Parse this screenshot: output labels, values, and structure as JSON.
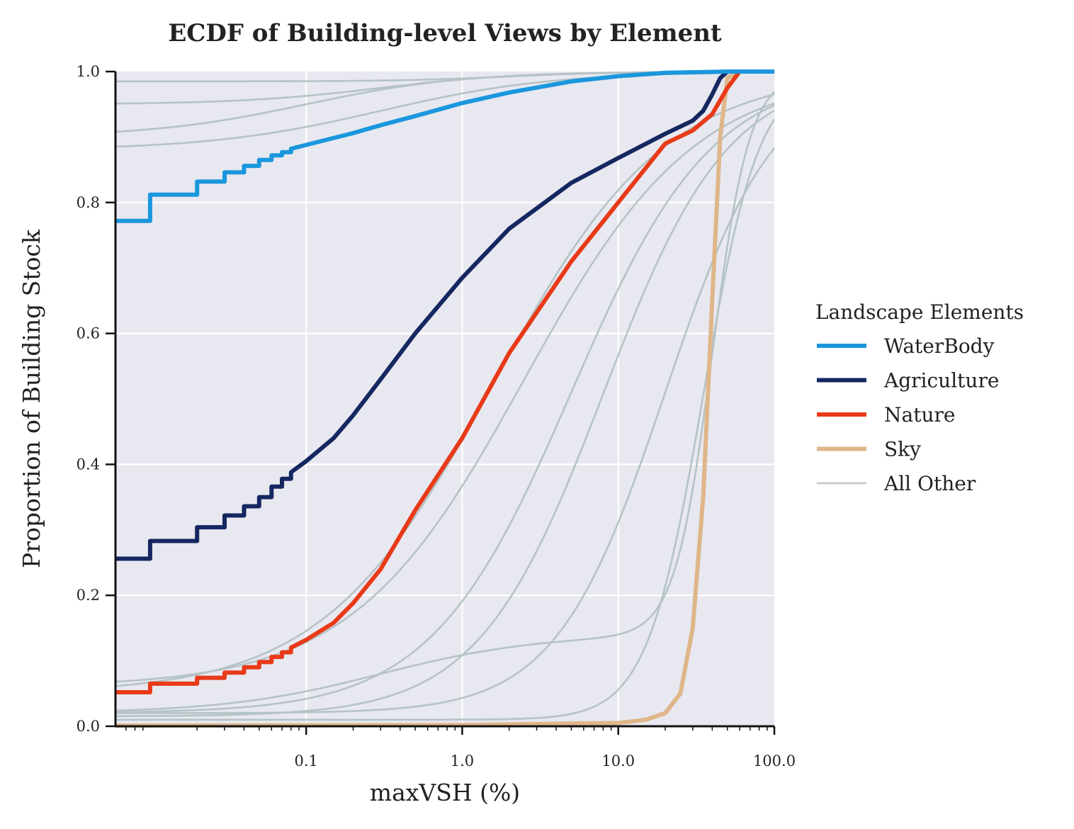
{
  "chart_data": {
    "type": "line",
    "title": "ECDF of Building-level Views by Element",
    "xlabel": "maxVSH (%)",
    "ylabel": "Proportion of Building Stock",
    "xscale": "log",
    "xlim": [
      0.006,
      100
    ],
    "ylim": [
      0,
      1
    ],
    "x_ticks": [
      0.1,
      1.0,
      10.0,
      100.0
    ],
    "x_tick_labels": [
      "0.1",
      "1.0",
      "10.0",
      "100.0"
    ],
    "y_ticks": [
      0,
      0.2,
      0.4,
      0.6,
      0.8,
      1.0
    ],
    "y_tick_labels": [
      "0.0",
      "0.2",
      "0.4",
      "0.6",
      "0.8",
      "1.0"
    ],
    "grid": true,
    "legend": {
      "title": "Landscape Elements",
      "placement": "right-outside",
      "entries": [
        {
          "label": "WaterBody",
          "color": "#1a97dd"
        },
        {
          "label": "Agriculture",
          "color": "#152760"
        },
        {
          "label": "Nature",
          "color": "#e83a18"
        },
        {
          "label": "Sky",
          "color": "#dfb68a"
        },
        {
          "label": "All Other",
          "color": "#cccccc"
        }
      ]
    },
    "series": [
      {
        "name": "WaterBody",
        "color": "#1a97dd",
        "points": [
          [
            0.006,
            0.772
          ],
          [
            0.01,
            0.772
          ],
          [
            0.01,
            0.812
          ],
          [
            0.02,
            0.812
          ],
          [
            0.02,
            0.832
          ],
          [
            0.03,
            0.832
          ],
          [
            0.03,
            0.846
          ],
          [
            0.04,
            0.846
          ],
          [
            0.04,
            0.856
          ],
          [
            0.05,
            0.856
          ],
          [
            0.05,
            0.865
          ],
          [
            0.06,
            0.865
          ],
          [
            0.06,
            0.872
          ],
          [
            0.07,
            0.872
          ],
          [
            0.07,
            0.877
          ],
          [
            0.08,
            0.877
          ],
          [
            0.08,
            0.882
          ],
          [
            0.1,
            0.888
          ],
          [
            0.2,
            0.906
          ],
          [
            0.3,
            0.918
          ],
          [
            0.5,
            0.932
          ],
          [
            1.0,
            0.952
          ],
          [
            2.0,
            0.968
          ],
          [
            5.0,
            0.985
          ],
          [
            10.0,
            0.993
          ],
          [
            20.0,
            0.998
          ],
          [
            50.0,
            1.0
          ],
          [
            100.0,
            1.0
          ]
        ]
      },
      {
        "name": "Agriculture",
        "color": "#152760",
        "points": [
          [
            0.006,
            0.256
          ],
          [
            0.01,
            0.256
          ],
          [
            0.01,
            0.283
          ],
          [
            0.02,
            0.283
          ],
          [
            0.02,
            0.304
          ],
          [
            0.03,
            0.304
          ],
          [
            0.03,
            0.322
          ],
          [
            0.04,
            0.322
          ],
          [
            0.04,
            0.336
          ],
          [
            0.05,
            0.336
          ],
          [
            0.05,
            0.35
          ],
          [
            0.06,
            0.35
          ],
          [
            0.06,
            0.366
          ],
          [
            0.07,
            0.366
          ],
          [
            0.07,
            0.378
          ],
          [
            0.08,
            0.378
          ],
          [
            0.08,
            0.388
          ],
          [
            0.1,
            0.405
          ],
          [
            0.15,
            0.44
          ],
          [
            0.2,
            0.475
          ],
          [
            0.3,
            0.53
          ],
          [
            0.5,
            0.6
          ],
          [
            1.0,
            0.685
          ],
          [
            2.0,
            0.76
          ],
          [
            5.0,
            0.83
          ],
          [
            10.0,
            0.868
          ],
          [
            20.0,
            0.905
          ],
          [
            30.0,
            0.925
          ],
          [
            35.0,
            0.94
          ],
          [
            40.0,
            0.965
          ],
          [
            45.0,
            0.99
          ],
          [
            50.0,
            1.0
          ],
          [
            100.0,
            1.0
          ]
        ]
      },
      {
        "name": "Nature",
        "color": "#e83a18",
        "points": [
          [
            0.006,
            0.052
          ],
          [
            0.01,
            0.052
          ],
          [
            0.01,
            0.065
          ],
          [
            0.02,
            0.065
          ],
          [
            0.02,
            0.074
          ],
          [
            0.03,
            0.074
          ],
          [
            0.03,
            0.082
          ],
          [
            0.04,
            0.082
          ],
          [
            0.04,
            0.09
          ],
          [
            0.05,
            0.09
          ],
          [
            0.05,
            0.098
          ],
          [
            0.06,
            0.098
          ],
          [
            0.06,
            0.106
          ],
          [
            0.07,
            0.106
          ],
          [
            0.07,
            0.113
          ],
          [
            0.08,
            0.113
          ],
          [
            0.08,
            0.12
          ],
          [
            0.1,
            0.132
          ],
          [
            0.15,
            0.158
          ],
          [
            0.2,
            0.188
          ],
          [
            0.3,
            0.24
          ],
          [
            0.5,
            0.33
          ],
          [
            1.0,
            0.44
          ],
          [
            2.0,
            0.57
          ],
          [
            5.0,
            0.71
          ],
          [
            10.0,
            0.8
          ],
          [
            20.0,
            0.89
          ],
          [
            30.0,
            0.91
          ],
          [
            40.0,
            0.935
          ],
          [
            50.0,
            0.975
          ],
          [
            60.0,
            1.0
          ],
          [
            100.0,
            1.0
          ]
        ]
      },
      {
        "name": "Sky",
        "color": "#dfb68a",
        "points": [
          [
            0.006,
            0.001
          ],
          [
            1.0,
            0.002
          ],
          [
            10.0,
            0.005
          ],
          [
            15.0,
            0.01
          ],
          [
            20.0,
            0.02
          ],
          [
            25.0,
            0.05
          ],
          [
            30.0,
            0.15
          ],
          [
            35.0,
            0.35
          ],
          [
            40.0,
            0.65
          ],
          [
            45.0,
            0.9
          ],
          [
            50.0,
            0.99
          ],
          [
            60.0,
            1.0
          ],
          [
            100.0,
            1.0
          ]
        ]
      }
    ]
  }
}
